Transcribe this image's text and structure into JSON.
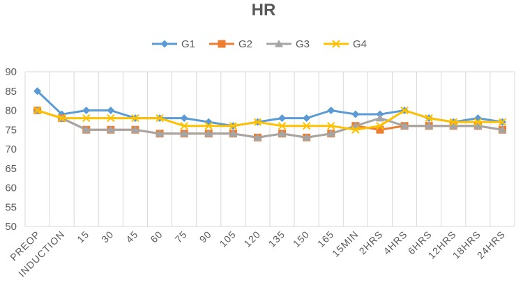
{
  "chart_data": {
    "type": "line",
    "title": "HR",
    "xlabel": "",
    "ylabel": "",
    "ylim": [
      50,
      90
    ],
    "yticks": [
      50,
      55,
      60,
      65,
      70,
      75,
      80,
      85,
      90
    ],
    "grid": "vertical",
    "legend_position": "top",
    "categories": [
      "PREOP",
      "INDUCTION",
      "15",
      "30",
      "45",
      "60",
      "75",
      "90",
      "105",
      "120",
      "135",
      "150",
      "165",
      "15MIN",
      "2HRS",
      "4HRS",
      "6HRS",
      "12HRS",
      "18HRS",
      "24HRS"
    ],
    "series": [
      {
        "name": "G1",
        "color": "#5b9bd5",
        "marker": "diamond",
        "values": [
          85,
          79,
          80,
          80,
          78,
          78,
          78,
          77,
          76,
          77,
          78,
          78,
          80,
          79,
          79,
          80,
          78,
          77,
          78,
          77
        ]
      },
      {
        "name": "G2",
        "color": "#ed7d31",
        "marker": "square",
        "values": [
          80,
          78,
          75,
          75,
          75,
          74,
          74,
          74,
          74,
          73,
          74,
          73,
          74,
          76,
          75,
          76,
          76,
          76,
          76,
          75
        ]
      },
      {
        "name": "G3",
        "color": "#a5a5a5",
        "marker": "triangle",
        "values": [
          80,
          78,
          75,
          75,
          75,
          74,
          74,
          74,
          74,
          73,
          74,
          73,
          74,
          76,
          78,
          76,
          76,
          76,
          76,
          75
        ]
      },
      {
        "name": "G4",
        "color": "#ffc000",
        "marker": "x",
        "values": [
          80,
          78,
          78,
          78,
          78,
          78,
          76,
          76,
          76,
          77,
          76,
          76,
          76,
          75,
          76,
          80,
          78,
          77,
          77,
          77
        ]
      }
    ]
  }
}
